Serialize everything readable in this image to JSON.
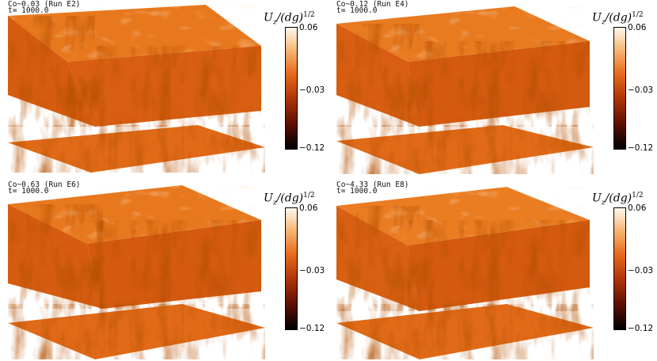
{
  "panels": [
    {
      "label": "Co~0.03 (Run E2)",
      "time": "t= 1000.0"
    },
    {
      "label": "Co~0.12 (Run E4)",
      "time": "t= 1000.0"
    },
    {
      "label": "Co~0.63 (Run E6)",
      "time": "t= 1000.0"
    },
    {
      "label": "Co~4.33 (Run E8)",
      "time": "t= 1000.0"
    }
  ],
  "colorbar": {
    "title": "U",
    "title_sub": "z",
    "title_rest": "/(dg)",
    "title_exp": "1/2",
    "ticks": [
      "0.06",
      "−0.03",
      "−0.12"
    ],
    "colors": [
      "#fff8ee",
      "#f6b878",
      "#e86a1e",
      "#b03608",
      "#5a0e02",
      "#000000"
    ]
  }
}
